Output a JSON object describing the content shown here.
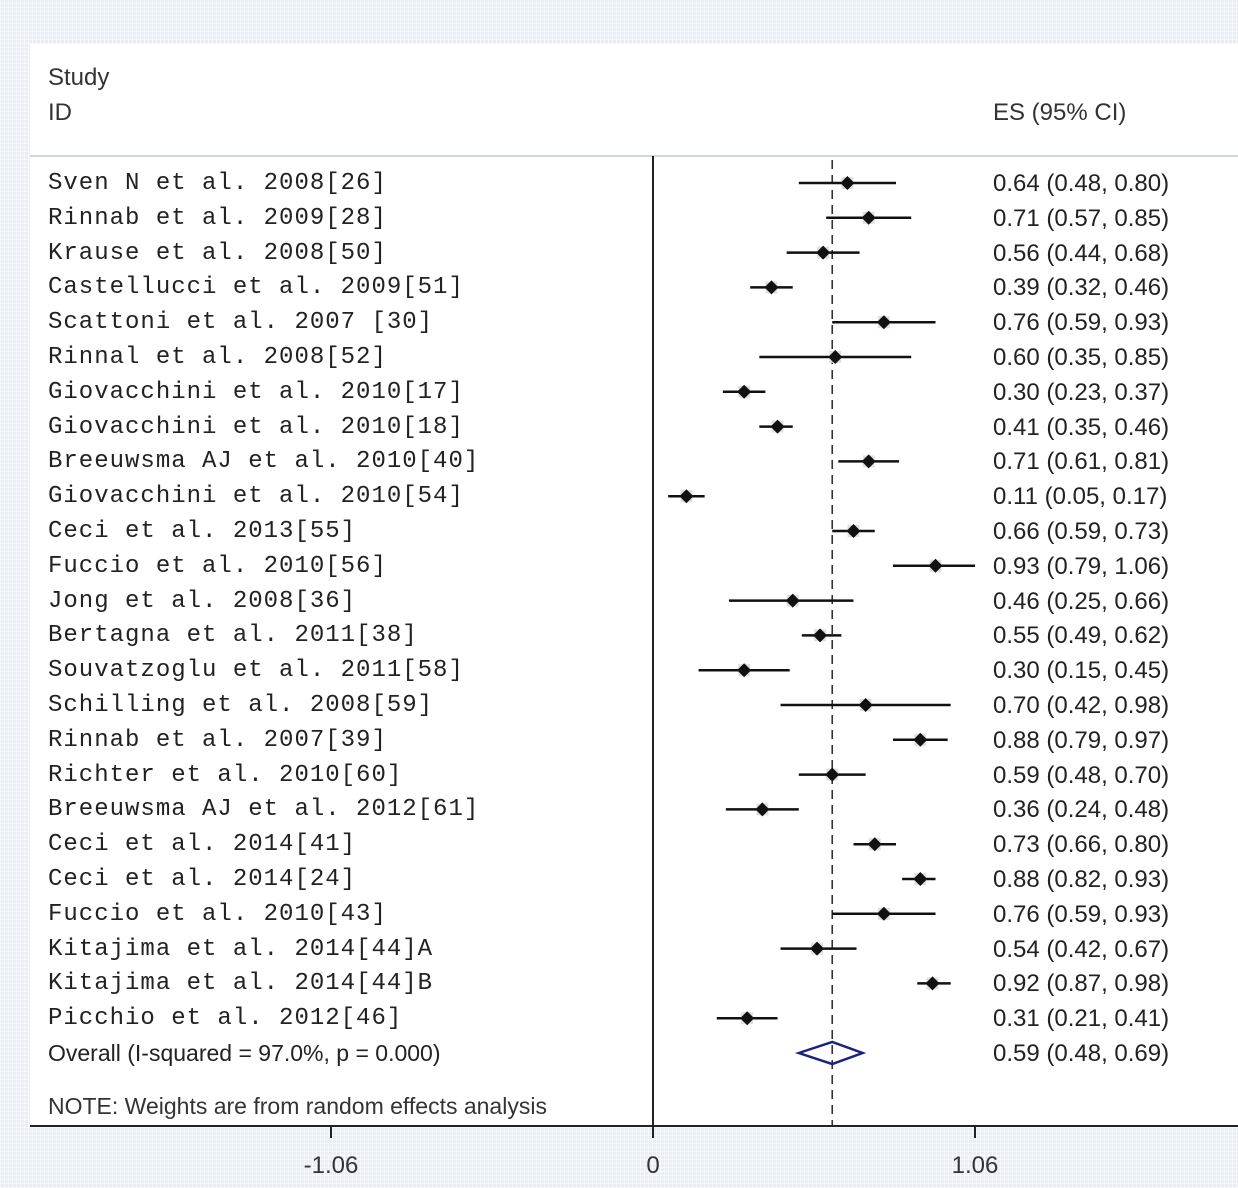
{
  "header": {
    "study_label_line1": "Study",
    "study_label_line2": "ID",
    "es_label": "ES (95% CI)"
  },
  "footer": {
    "note": "NOTE: Weights are from random effects analysis"
  },
  "chart_data": {
    "type": "forest",
    "x_ticks": [
      {
        "value": -1.06,
        "label": "-1.06"
      },
      {
        "value": 0,
        "label": "0"
      },
      {
        "value": 1.06,
        "label": "1.06"
      }
    ],
    "null_line": 0,
    "overall_line": 0.59,
    "studies": [
      {
        "label": "Sven N et al. 2008[26]",
        "es": 0.64,
        "lo": 0.48,
        "hi": 0.8,
        "text": "0.64 (0.48, 0.80)"
      },
      {
        "label": "Rinnab et al. 2009[28]",
        "es": 0.71,
        "lo": 0.57,
        "hi": 0.85,
        "text": "0.71 (0.57, 0.85)"
      },
      {
        "label": "Krause et al. 2008[50]",
        "es": 0.56,
        "lo": 0.44,
        "hi": 0.68,
        "text": "0.56 (0.44, 0.68)"
      },
      {
        "label": "Castellucci et al. 2009[51]",
        "es": 0.39,
        "lo": 0.32,
        "hi": 0.46,
        "text": "0.39 (0.32, 0.46)"
      },
      {
        "label": "Scattoni et al. 2007 [30]",
        "es": 0.76,
        "lo": 0.59,
        "hi": 0.93,
        "text": "0.76 (0.59, 0.93)"
      },
      {
        "label": "Rinnal et al. 2008[52]",
        "es": 0.6,
        "lo": 0.35,
        "hi": 0.85,
        "text": "0.60 (0.35, 0.85)"
      },
      {
        "label": "Giovacchini et al. 2010[17]",
        "es": 0.3,
        "lo": 0.23,
        "hi": 0.37,
        "text": "0.30 (0.23, 0.37)"
      },
      {
        "label": "Giovacchini et al. 2010[18]",
        "es": 0.41,
        "lo": 0.35,
        "hi": 0.46,
        "text": "0.41 (0.35, 0.46)"
      },
      {
        "label": "Breeuwsma AJ et al. 2010[40]",
        "es": 0.71,
        "lo": 0.61,
        "hi": 0.81,
        "text": "0.71 (0.61, 0.81)"
      },
      {
        "label": "Giovacchini et al. 2010[54]",
        "es": 0.11,
        "lo": 0.05,
        "hi": 0.17,
        "text": "0.11 (0.05, 0.17)"
      },
      {
        "label": "Ceci et al. 2013[55]",
        "es": 0.66,
        "lo": 0.59,
        "hi": 0.73,
        "text": "0.66 (0.59, 0.73)"
      },
      {
        "label": "Fuccio et al. 2010[56]",
        "es": 0.93,
        "lo": 0.79,
        "hi": 1.06,
        "text": "0.93 (0.79, 1.06)"
      },
      {
        "label": "Jong et al. 2008[36]",
        "es": 0.46,
        "lo": 0.25,
        "hi": 0.66,
        "text": "0.46 (0.25, 0.66)"
      },
      {
        "label": "Bertagna et al. 2011[38]",
        "es": 0.55,
        "lo": 0.49,
        "hi": 0.62,
        "text": "0.55 (0.49, 0.62)"
      },
      {
        "label": "Souvatzoglu et al. 2011[58]",
        "es": 0.3,
        "lo": 0.15,
        "hi": 0.45,
        "text": "0.30 (0.15, 0.45)"
      },
      {
        "label": "Schilling et al. 2008[59]",
        "es": 0.7,
        "lo": 0.42,
        "hi": 0.98,
        "text": "0.70 (0.42, 0.98)"
      },
      {
        "label": "Rinnab et al. 2007[39]",
        "es": 0.88,
        "lo": 0.79,
        "hi": 0.97,
        "text": "0.88 (0.79, 0.97)"
      },
      {
        "label": "Richter et al. 2010[60]",
        "es": 0.59,
        "lo": 0.48,
        "hi": 0.7,
        "text": "0.59 (0.48, 0.70)"
      },
      {
        "label": "Breeuwsma AJ et al. 2012[61]",
        "es": 0.36,
        "lo": 0.24,
        "hi": 0.48,
        "text": "0.36 (0.24, 0.48)"
      },
      {
        "label": "Ceci et al. 2014[41]",
        "es": 0.73,
        "lo": 0.66,
        "hi": 0.8,
        "text": "0.73 (0.66, 0.80)"
      },
      {
        "label": "Ceci et al. 2014[24]",
        "es": 0.88,
        "lo": 0.82,
        "hi": 0.93,
        "text": "0.88 (0.82, 0.93)"
      },
      {
        "label": "Fuccio et al. 2010[43]",
        "es": 0.76,
        "lo": 0.59,
        "hi": 0.93,
        "text": "0.76 (0.59, 0.93)"
      },
      {
        "label": "Kitajima et al. 2014[44]A",
        "es": 0.54,
        "lo": 0.42,
        "hi": 0.67,
        "text": "0.54 (0.42, 0.67)"
      },
      {
        "label": "Kitajima et al. 2014[44]B",
        "es": 0.92,
        "lo": 0.87,
        "hi": 0.98,
        "text": "0.92 (0.87, 0.98)"
      },
      {
        "label": "Picchio et al. 2012[46]",
        "es": 0.31,
        "lo": 0.21,
        "hi": 0.41,
        "text": "0.31 (0.21, 0.41)"
      }
    ],
    "overall": {
      "label": "Overall  (I-squared = 97.0%, p = 0.000)",
      "es": 0.59,
      "lo": 0.48,
      "hi": 0.69,
      "text": "0.59 (0.48, 0.69)",
      "diamond_color": "#1a237e"
    }
  }
}
